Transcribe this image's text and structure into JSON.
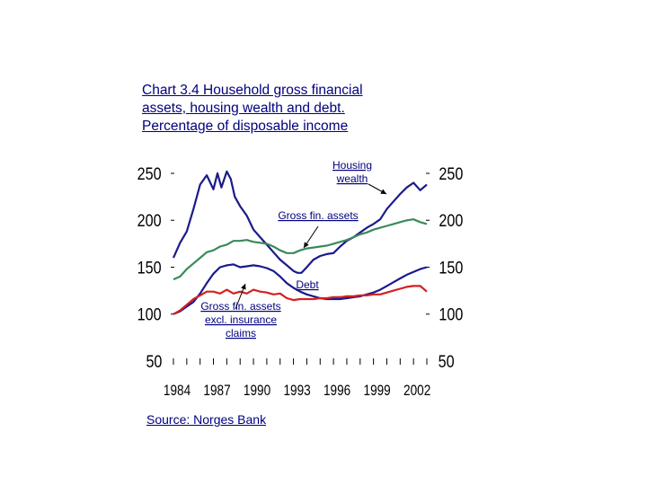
{
  "title_lines": [
    "Chart 3.4 Household gross financial",
    "assets, housing wealth and debt.",
    "Percentage of disposable income"
  ],
  "source": "Source: Norges Bank",
  "colors": {
    "housing_wealth": "#1a1a8c",
    "gross_fin_assets": "#3a8a5a",
    "debt": "#1a1a8c",
    "gross_fin_assets_excl": "#d42020",
    "text": "#000080"
  },
  "chart_data": {
    "type": "line",
    "title": "Chart 3.4 Household gross financial assets, housing wealth and debt. Percentage of disposable income",
    "xlabel": "",
    "ylabel": "",
    "xlim": [
      1984,
      2003
    ],
    "ylim": [
      50,
      250
    ],
    "x_ticks": [
      "1984",
      "1987",
      "1990",
      "1993",
      "1996",
      "1999",
      "2002"
    ],
    "y_ticks_left": [
      "250",
      "200",
      "150",
      "100",
      "50"
    ],
    "y_ticks_right": [
      "250",
      "200",
      "150",
      "100",
      "50"
    ],
    "grid": false,
    "annotations": [
      {
        "lines": [
          "Housing",
          "wealth"
        ],
        "series": "Housing wealth"
      },
      {
        "lines": [
          "Gross fin. assets"
        ],
        "series": "Gross fin. assets"
      },
      {
        "lines": [
          "Debt"
        ],
        "series": "Debt"
      },
      {
        "lines": [
          "Gross fin. assets",
          "excl. insurance",
          "claims"
        ],
        "series": "Gross fin. assets excl. insurance claims"
      }
    ],
    "series": [
      {
        "name": "Housing wealth",
        "x": [
          1984.0,
          1984.5,
          1985.0,
          1985.5,
          1986.0,
          1986.5,
          1987.0,
          1987.3,
          1987.6,
          1988.0,
          1988.3,
          1988.6,
          1989.0,
          1989.5,
          1990.0,
          1990.5,
          1991.0,
          1991.5,
          1992.0,
          1992.5,
          1993.0,
          1993.3,
          1993.6,
          1994.0,
          1994.5,
          1995.0,
          1995.5,
          1996.0,
          1996.5,
          1997.0,
          1997.5,
          1998.0,
          1998.5,
          1999.0,
          1999.5,
          2000.0,
          2000.5,
          2001.0,
          2001.5,
          2002.0,
          2002.5,
          2003.0
        ],
        "values": [
          160,
          176,
          188,
          212,
          238,
          248,
          233,
          250,
          235,
          252,
          244,
          225,
          215,
          205,
          190,
          182,
          174,
          166,
          158,
          152,
          146,
          144,
          144,
          150,
          158,
          162,
          164,
          165,
          172,
          178,
          182,
          187,
          192,
          196,
          201,
          212,
          220,
          228,
          235,
          240,
          232,
          238
        ]
      },
      {
        "name": "Gross fin. assets",
        "x": [
          1984.0,
          1984.5,
          1985.0,
          1985.5,
          1986.0,
          1986.5,
          1987.0,
          1987.5,
          1988.0,
          1988.5,
          1989.0,
          1989.5,
          1990.0,
          1990.5,
          1991.0,
          1991.5,
          1992.0,
          1992.5,
          1993.0,
          1993.5,
          1994.0,
          1994.5,
          1995.0,
          1995.5,
          1996.0,
          1996.5,
          1997.0,
          1997.5,
          1998.0,
          1998.5,
          1999.0,
          1999.5,
          2000.0,
          2000.5,
          2001.0,
          2001.5,
          2002.0,
          2002.5,
          2003.0
        ],
        "values": [
          137,
          140,
          148,
          154,
          160,
          166,
          168,
          172,
          174,
          178,
          178,
          179,
          177,
          176,
          175,
          172,
          168,
          165,
          165,
          168,
          170,
          171,
          172,
          173,
          175,
          177,
          179,
          182,
          185,
          187,
          190,
          192,
          194,
          196,
          198,
          200,
          201,
          198,
          196
        ]
      },
      {
        "name": "Debt",
        "x": [
          1984.0,
          1984.5,
          1985.0,
          1985.5,
          1986.0,
          1986.5,
          1987.0,
          1987.5,
          1988.0,
          1988.5,
          1989.0,
          1989.5,
          1990.0,
          1990.5,
          1991.0,
          1991.5,
          1992.0,
          1992.5,
          1993.0,
          1993.5,
          1994.0,
          1994.5,
          1995.0,
          1995.5,
          1996.0,
          1996.5,
          1997.0,
          1997.5,
          1998.0,
          1998.5,
          1999.0,
          1999.5,
          2000.0,
          2000.5,
          2001.0,
          2001.5,
          2002.0,
          2002.5,
          2003.0
        ],
        "values": [
          100,
          103,
          108,
          113,
          122,
          133,
          143,
          150,
          152,
          153,
          150,
          151,
          152,
          151,
          149,
          146,
          140,
          133,
          128,
          124,
          121,
          119,
          117,
          116,
          116,
          116,
          117,
          118,
          119,
          121,
          123,
          126,
          130,
          134,
          138,
          142,
          145,
          148,
          150
        ]
      },
      {
        "name": "Gross fin. assets excl. insurance claims",
        "x": [
          1984.0,
          1984.5,
          1985.0,
          1985.5,
          1986.0,
          1986.5,
          1987.0,
          1987.5,
          1988.0,
          1988.5,
          1989.0,
          1989.5,
          1990.0,
          1990.5,
          1991.0,
          1991.5,
          1992.0,
          1992.5,
          1993.0,
          1993.5,
          1994.0,
          1994.5,
          1995.0,
          1995.5,
          1996.0,
          1996.5,
          1997.0,
          1997.5,
          1998.0,
          1998.5,
          1999.0,
          1999.5,
          2000.0,
          2000.5,
          2001.0,
          2001.5,
          2002.0,
          2002.5,
          2003.0
        ],
        "values": [
          100,
          104,
          110,
          116,
          120,
          124,
          124,
          122,
          126,
          122,
          124,
          122,
          126,
          124,
          123,
          121,
          122,
          117,
          115,
          116,
          116,
          116,
          117,
          117,
          118,
          118,
          119,
          119,
          120,
          120,
          121,
          121,
          123,
          125,
          127,
          129,
          130,
          130,
          124
        ]
      }
    ]
  }
}
